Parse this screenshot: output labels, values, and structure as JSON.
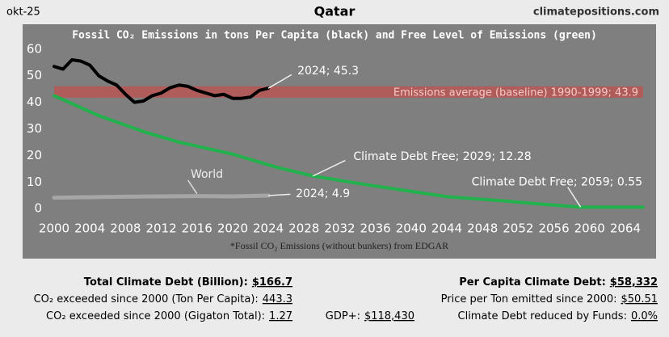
{
  "header": {
    "date": "okt-25",
    "country": "Qatar",
    "site": "climatepositions.com"
  },
  "chart_data": {
    "type": "line",
    "title": "Fossil CO₂ Emissions in tons Per Capita (black) and Free Level of Emissions (green)",
    "footnote": "*Fossil CO₂ Emissions (without bunkers) from EDGAR",
    "xlim": [
      2000,
      2066
    ],
    "ylim": [
      -3,
      63
    ],
    "xticks": [
      2000,
      2004,
      2008,
      2012,
      2016,
      2020,
      2024,
      2028,
      2032,
      2036,
      2040,
      2044,
      2048,
      2052,
      2056,
      2060,
      2064
    ],
    "yticks": [
      0,
      10,
      20,
      30,
      40,
      50,
      60
    ],
    "baseline": {
      "label": "Emissions average (baseline) 1990-1999; 43.9",
      "value": 43.9,
      "color": "#c0504d"
    },
    "series": [
      {
        "color": "#22b14c",
        "x": [
          2000,
          2005,
          2010,
          2014,
          2020,
          2025,
          2029,
          2035,
          2040,
          2044,
          2050,
          2055,
          2059,
          2066
        ],
        "values": [
          42.5,
          35,
          29,
          25,
          20.5,
          15.5,
          12.28,
          9,
          6.5,
          4.5,
          3,
          1.6,
          0.55,
          0.55
        ]
      },
      {
        "name": "World",
        "color": "#a6a6a6",
        "x": [
          2000,
          2004,
          2008,
          2012,
          2016,
          2020,
          2024
        ],
        "values": [
          4.1,
          4.3,
          4.5,
          4.6,
          4.7,
          4.6,
          4.9
        ]
      },
      {
        "color": "#000000",
        "x": [
          2000,
          2001,
          2002,
          2003,
          2004,
          2005,
          2006,
          2007,
          2008,
          2009,
          2010,
          2011,
          2012,
          2013,
          2014,
          2015,
          2016,
          2017,
          2018,
          2019,
          2020,
          2021,
          2022,
          2023,
          2024
        ],
        "values": [
          53.5,
          52.5,
          56,
          55.5,
          54,
          50,
          48,
          46.5,
          43,
          40,
          40.5,
          42.5,
          43.5,
          45.5,
          46.5,
          46,
          44.5,
          43.5,
          42.5,
          43,
          41.5,
          41.5,
          42,
          44.5,
          45.3
        ]
      }
    ],
    "annotations": [
      {
        "text": "2024; 45.3",
        "x": 2024,
        "y": 45.3
      },
      {
        "text": "Climate Debt Free; 2029; 12.28",
        "x": 2029,
        "y": 12.28
      },
      {
        "text": "Climate Debt Free; 2059; 0.55",
        "x": 2059,
        "y": 0.55
      },
      {
        "text": "2024; 4.9",
        "x": 2024,
        "y": 4.9
      }
    ]
  },
  "stats": {
    "left": [
      {
        "label": "Total Climate Debt (Billion):",
        "value": "$166.7"
      },
      {
        "label": "CO₂ exceeded since 2000 (Ton Per Capita):",
        "value": "443.3"
      },
      {
        "label": "CO₂ exceeded since 2000 (Gigaton Total):",
        "value": "1.27"
      }
    ],
    "middle": {
      "label": "GDP+:",
      "value": "$118,430"
    },
    "right": [
      {
        "label": "Per Capita Climate Debt:",
        "value": "$58,332"
      },
      {
        "label": "Price per Ton emitted since 2000:",
        "value": "$50.51"
      },
      {
        "label": "Climate Debt reduced by Funds:",
        "value": "0.0%"
      }
    ]
  }
}
